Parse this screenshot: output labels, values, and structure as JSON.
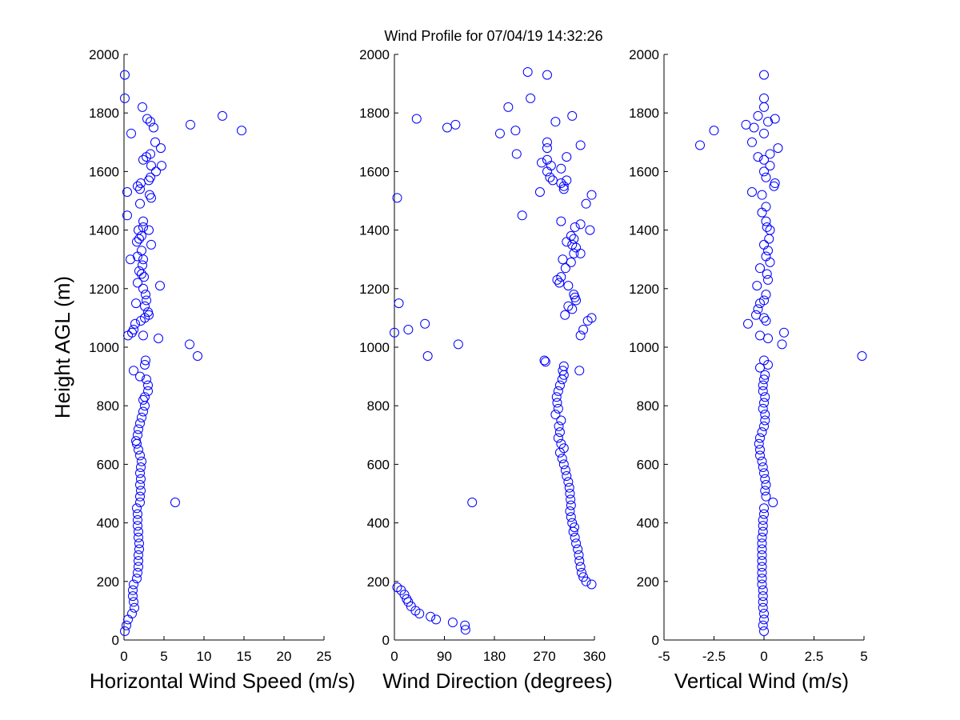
{
  "figure_title": "Wind Profile for  07/04/19 14:32:26",
  "chart_data": [
    {
      "type": "scatter",
      "id": "speed",
      "xlabel": "Horizontal Wind Speed (m/s)",
      "ylabel": "Height AGL (m)",
      "xlim": [
        0,
        25
      ],
      "ylim": [
        0,
        2000
      ],
      "xticks": [
        0,
        5,
        10,
        15,
        20,
        25
      ],
      "xtick_labels": [
        "0",
        "5",
        "10",
        "15",
        "20",
        "25"
      ],
      "yticks": [
        0,
        200,
        400,
        600,
        800,
        1000,
        1200,
        1400,
        1600,
        1800,
        2000
      ],
      "ytick_labels": [
        "0",
        "200",
        "400",
        "600",
        "800",
        "1000",
        "1200",
        "1400",
        "1600",
        "1800",
        "2000"
      ],
      "marker": "o",
      "color": "#0000ff",
      "points": [
        [
          0.1,
          30
        ],
        [
          0.3,
          50
        ],
        [
          0.5,
          70
        ],
        [
          1.0,
          90
        ],
        [
          1.3,
          110
        ],
        [
          1.2,
          130
        ],
        [
          1.1,
          150
        ],
        [
          1.1,
          170
        ],
        [
          1.2,
          190
        ],
        [
          1.6,
          210
        ],
        [
          1.7,
          230
        ],
        [
          1.8,
          250
        ],
        [
          1.8,
          270
        ],
        [
          1.8,
          290
        ],
        [
          1.9,
          310
        ],
        [
          1.9,
          330
        ],
        [
          1.8,
          350
        ],
        [
          1.8,
          370
        ],
        [
          1.7,
          390
        ],
        [
          1.7,
          410
        ],
        [
          1.7,
          430
        ],
        [
          1.6,
          450
        ],
        [
          2.0,
          470
        ],
        [
          2.0,
          490
        ],
        [
          2.1,
          510
        ],
        [
          2.0,
          530
        ],
        [
          2.1,
          550
        ],
        [
          2.0,
          570
        ],
        [
          2.1,
          590
        ],
        [
          2.2,
          610
        ],
        [
          2.0,
          630
        ],
        [
          1.8,
          650
        ],
        [
          1.6,
          670
        ],
        [
          1.5,
          680
        ],
        [
          1.7,
          700
        ],
        [
          1.8,
          720
        ],
        [
          2.0,
          740
        ],
        [
          2.2,
          760
        ],
        [
          2.4,
          780
        ],
        [
          2.6,
          800
        ],
        [
          2.4,
          820
        ],
        [
          2.6,
          830
        ],
        [
          3.0,
          850
        ],
        [
          3.0,
          870
        ],
        [
          2.8,
          890
        ],
        [
          2.0,
          900
        ],
        [
          1.2,
          920
        ],
        [
          2.6,
          940
        ],
        [
          2.7,
          955
        ],
        [
          6.4,
          470
        ],
        [
          8.2,
          1010
        ],
        [
          9.2,
          970
        ],
        [
          0.5,
          1040
        ],
        [
          1.0,
          1050
        ],
        [
          1.2,
          1060
        ],
        [
          1.4,
          1080
        ],
        [
          2.4,
          1040
        ],
        [
          2.1,
          1090
        ],
        [
          2.6,
          1100
        ],
        [
          4.3,
          1030
        ],
        [
          3.1,
          1110
        ],
        [
          3.0,
          1120
        ],
        [
          2.6,
          1140
        ],
        [
          1.5,
          1150
        ],
        [
          2.8,
          1160
        ],
        [
          2.7,
          1180
        ],
        [
          2.4,
          1200
        ],
        [
          4.5,
          1210
        ],
        [
          1.7,
          1220
        ],
        [
          2.5,
          1240
        ],
        [
          2.2,
          1250
        ],
        [
          1.9,
          1260
        ],
        [
          2.3,
          1280
        ],
        [
          2.4,
          1300
        ],
        [
          1.7,
          1310
        ],
        [
          0.8,
          1300
        ],
        [
          2.2,
          1330
        ],
        [
          3.4,
          1350
        ],
        [
          1.6,
          1360
        ],
        [
          1.9,
          1370
        ],
        [
          2.2,
          1380
        ],
        [
          3.1,
          1400
        ],
        [
          2.4,
          1410
        ],
        [
          2.4,
          1430
        ],
        [
          1.8,
          1400
        ],
        [
          0.4,
          1450
        ],
        [
          2.0,
          1490
        ],
        [
          3.4,
          1510
        ],
        [
          3.2,
          1520
        ],
        [
          0.4,
          1530
        ],
        [
          2.0,
          1540
        ],
        [
          1.7,
          1550
        ],
        [
          2.1,
          1560
        ],
        [
          3.1,
          1570
        ],
        [
          3.3,
          1580
        ],
        [
          4.0,
          1600
        ],
        [
          4.7,
          1620
        ],
        [
          3.4,
          1620
        ],
        [
          2.4,
          1640
        ],
        [
          2.8,
          1650
        ],
        [
          3.3,
          1660
        ],
        [
          4.6,
          1680
        ],
        [
          3.9,
          1700
        ],
        [
          0.9,
          1730
        ],
        [
          14.7,
          1740
        ],
        [
          3.7,
          1750
        ],
        [
          8.3,
          1760
        ],
        [
          3.3,
          1770
        ],
        [
          2.9,
          1780
        ],
        [
          12.3,
          1790
        ],
        [
          2.3,
          1820
        ],
        [
          0.1,
          1850
        ],
        [
          0.1,
          1930
        ]
      ]
    },
    {
      "type": "scatter",
      "id": "direction",
      "xlabel": "Wind Direction (degrees)",
      "ylabel": "",
      "xlim": [
        0,
        360
      ],
      "ylim": [
        0,
        2000
      ],
      "xticks": [
        0,
        90,
        180,
        270,
        360
      ],
      "xtick_labels": [
        "0",
        "90",
        "180",
        "270",
        "360"
      ],
      "yticks": [
        0,
        200,
        400,
        600,
        800,
        1000,
        1200,
        1400,
        1600,
        1800,
        2000
      ],
      "ytick_labels": [
        "0",
        "200",
        "400",
        "600",
        "800",
        "1000",
        "1200",
        "1400",
        "1600",
        "1800",
        "2000"
      ],
      "marker": "o",
      "color": "#0000ff",
      "points": [
        [
          5,
          180
        ],
        [
          12,
          170
        ],
        [
          18,
          155
        ],
        [
          22,
          140
        ],
        [
          25,
          130
        ],
        [
          30,
          115
        ],
        [
          38,
          100
        ],
        [
          45,
          90
        ],
        [
          65,
          80
        ],
        [
          75,
          70
        ],
        [
          105,
          60
        ],
        [
          127,
          50
        ],
        [
          128,
          35
        ],
        [
          140,
          470
        ],
        [
          355,
          190
        ],
        [
          345,
          200
        ],
        [
          340,
          215
        ],
        [
          337,
          230
        ],
        [
          335,
          250
        ],
        [
          333,
          270
        ],
        [
          332,
          290
        ],
        [
          330,
          310
        ],
        [
          327,
          330
        ],
        [
          325,
          350
        ],
        [
          322,
          370
        ],
        [
          324,
          385
        ],
        [
          320,
          400
        ],
        [
          318,
          420
        ],
        [
          316,
          440
        ],
        [
          318,
          460
        ],
        [
          317,
          480
        ],
        [
          316,
          500
        ],
        [
          315,
          520
        ],
        [
          313,
          540
        ],
        [
          310,
          560
        ],
        [
          308,
          580
        ],
        [
          305,
          600
        ],
        [
          302,
          620
        ],
        [
          298,
          640
        ],
        [
          305,
          655
        ],
        [
          300,
          670
        ],
        [
          295,
          690
        ],
        [
          298,
          710
        ],
        [
          296,
          730
        ],
        [
          300,
          750
        ],
        [
          290,
          770
        ],
        [
          295,
          790
        ],
        [
          293,
          810
        ],
        [
          292,
          830
        ],
        [
          295,
          850
        ],
        [
          298,
          870
        ],
        [
          302,
          890
        ],
        [
          305,
          905
        ],
        [
          303,
          920
        ],
        [
          305,
          935
        ],
        [
          270,
          955
        ],
        [
          272,
          950
        ],
        [
          333,
          920
        ],
        [
          335,
          1040
        ],
        [
          340,
          1060
        ],
        [
          348,
          1090
        ],
        [
          355,
          1100
        ],
        [
          307,
          1110
        ],
        [
          320,
          1130
        ],
        [
          313,
          1140
        ],
        [
          327,
          1160
        ],
        [
          325,
          1170
        ],
        [
          323,
          1180
        ],
        [
          313,
          1210
        ],
        [
          297,
          1220
        ],
        [
          293,
          1230
        ],
        [
          300,
          1240
        ],
        [
          308,
          1270
        ],
        [
          318,
          1290
        ],
        [
          303,
          1300
        ],
        [
          323,
          1320
        ],
        [
          335,
          1320
        ],
        [
          327,
          1340
        ],
        [
          320,
          1350
        ],
        [
          310,
          1360
        ],
        [
          323,
          1370
        ],
        [
          318,
          1380
        ],
        [
          335,
          1420
        ],
        [
          325,
          1410
        ],
        [
          300,
          1430
        ],
        [
          352,
          1400
        ],
        [
          230,
          1450
        ],
        [
          345,
          1490
        ],
        [
          355,
          1520
        ],
        [
          262,
          1530
        ],
        [
          305,
          1540
        ],
        [
          305,
          1550
        ],
        [
          300,
          1560
        ],
        [
          310,
          1570
        ],
        [
          285,
          1570
        ],
        [
          280,
          1580
        ],
        [
          275,
          1600
        ],
        [
          300,
          1610
        ],
        [
          282,
          1620
        ],
        [
          265,
          1630
        ],
        [
          275,
          1640
        ],
        [
          310,
          1650
        ],
        [
          220,
          1660
        ],
        [
          275,
          1680
        ],
        [
          335,
          1690
        ],
        [
          275,
          1700
        ],
        [
          190,
          1730
        ],
        [
          218,
          1740
        ],
        [
          290,
          1770
        ],
        [
          320,
          1790
        ],
        [
          110,
          1760
        ],
        [
          95,
          1750
        ],
        [
          40,
          1780
        ],
        [
          205,
          1820
        ],
        [
          245,
          1850
        ],
        [
          275,
          1930
        ],
        [
          240,
          1940
        ],
        [
          5,
          1510
        ],
        [
          55,
          1080
        ],
        [
          25,
          1060
        ],
        [
          0,
          1050
        ],
        [
          115,
          1010
        ],
        [
          60,
          970
        ],
        [
          8,
          1150
        ]
      ]
    },
    {
      "type": "scatter",
      "id": "vertical",
      "xlabel": "Vertical Wind (m/s)",
      "ylabel": "",
      "xlim": [
        -5,
        5
      ],
      "ylim": [
        0,
        2000
      ],
      "xticks": [
        -5,
        -2.5,
        0,
        2.5,
        5
      ],
      "xtick_labels": [
        "-5",
        "-2.5",
        "0",
        "2.5",
        "5"
      ],
      "yticks": [
        0,
        200,
        400,
        600,
        800,
        1000,
        1200,
        1400,
        1600,
        1800,
        2000
      ],
      "ytick_labels": [
        "0",
        "200",
        "400",
        "600",
        "800",
        "1000",
        "1200",
        "1400",
        "1600",
        "1800",
        "2000"
      ],
      "marker": "o",
      "color": "#0000ff",
      "points": [
        [
          0.0,
          30
        ],
        [
          -0.05,
          50
        ],
        [
          0.0,
          70
        ],
        [
          0.0,
          90
        ],
        [
          -0.05,
          110
        ],
        [
          -0.05,
          130
        ],
        [
          -0.05,
          150
        ],
        [
          -0.05,
          170
        ],
        [
          -0.1,
          190
        ],
        [
          -0.1,
          210
        ],
        [
          -0.1,
          230
        ],
        [
          -0.1,
          250
        ],
        [
          -0.1,
          270
        ],
        [
          -0.1,
          290
        ],
        [
          -0.1,
          310
        ],
        [
          -0.1,
          330
        ],
        [
          -0.1,
          350
        ],
        [
          -0.05,
          370
        ],
        [
          -0.05,
          390
        ],
        [
          -0.05,
          410
        ],
        [
          0.0,
          430
        ],
        [
          0.0,
          450
        ],
        [
          0.45,
          470
        ],
        [
          0.1,
          490
        ],
        [
          0.05,
          510
        ],
        [
          0.1,
          530
        ],
        [
          0.05,
          550
        ],
        [
          0.0,
          570
        ],
        [
          -0.05,
          590
        ],
        [
          -0.1,
          610
        ],
        [
          -0.2,
          630
        ],
        [
          -0.2,
          650
        ],
        [
          -0.25,
          670
        ],
        [
          -0.2,
          690
        ],
        [
          -0.1,
          710
        ],
        [
          0.0,
          730
        ],
        [
          0.05,
          750
        ],
        [
          0.05,
          770
        ],
        [
          -0.05,
          790
        ],
        [
          0.0,
          810
        ],
        [
          0.05,
          830
        ],
        [
          -0.05,
          850
        ],
        [
          -0.05,
          870
        ],
        [
          0.0,
          890
        ],
        [
          0.05,
          905
        ],
        [
          -0.2,
          930
        ],
        [
          0.2,
          940
        ],
        [
          0.0,
          955
        ],
        [
          4.9,
          970
        ],
        [
          0.9,
          1010
        ],
        [
          1.0,
          1050
        ],
        [
          0.2,
          1030
        ],
        [
          -0.2,
          1040
        ],
        [
          -0.8,
          1080
        ],
        [
          0.1,
          1090
        ],
        [
          0.0,
          1100
        ],
        [
          -0.4,
          1110
        ],
        [
          -0.3,
          1130
        ],
        [
          -0.2,
          1150
        ],
        [
          0.0,
          1160
        ],
        [
          0.1,
          1180
        ],
        [
          -0.35,
          1210
        ],
        [
          0.2,
          1230
        ],
        [
          0.15,
          1250
        ],
        [
          -0.2,
          1270
        ],
        [
          0.3,
          1290
        ],
        [
          0.1,
          1310
        ],
        [
          0.2,
          1330
        ],
        [
          0.0,
          1350
        ],
        [
          0.25,
          1370
        ],
        [
          0.3,
          1400
        ],
        [
          0.15,
          1410
        ],
        [
          0.1,
          1430
        ],
        [
          -0.1,
          1460
        ],
        [
          0.1,
          1480
        ],
        [
          -0.1,
          1520
        ],
        [
          -0.6,
          1530
        ],
        [
          0.5,
          1550
        ],
        [
          0.55,
          1560
        ],
        [
          0.1,
          1580
        ],
        [
          0.0,
          1600
        ],
        [
          0.3,
          1620
        ],
        [
          0.0,
          1640
        ],
        [
          -0.3,
          1650
        ],
        [
          0.3,
          1660
        ],
        [
          0.7,
          1680
        ],
        [
          -3.2,
          1690
        ],
        [
          -0.6,
          1700
        ],
        [
          0.0,
          1730
        ],
        [
          -2.5,
          1740
        ],
        [
          -0.5,
          1750
        ],
        [
          -0.9,
          1760
        ],
        [
          0.2,
          1770
        ],
        [
          0.55,
          1780
        ],
        [
          -0.3,
          1790
        ],
        [
          0.0,
          1820
        ],
        [
          0.0,
          1850
        ],
        [
          0.0,
          1930
        ]
      ]
    }
  ]
}
